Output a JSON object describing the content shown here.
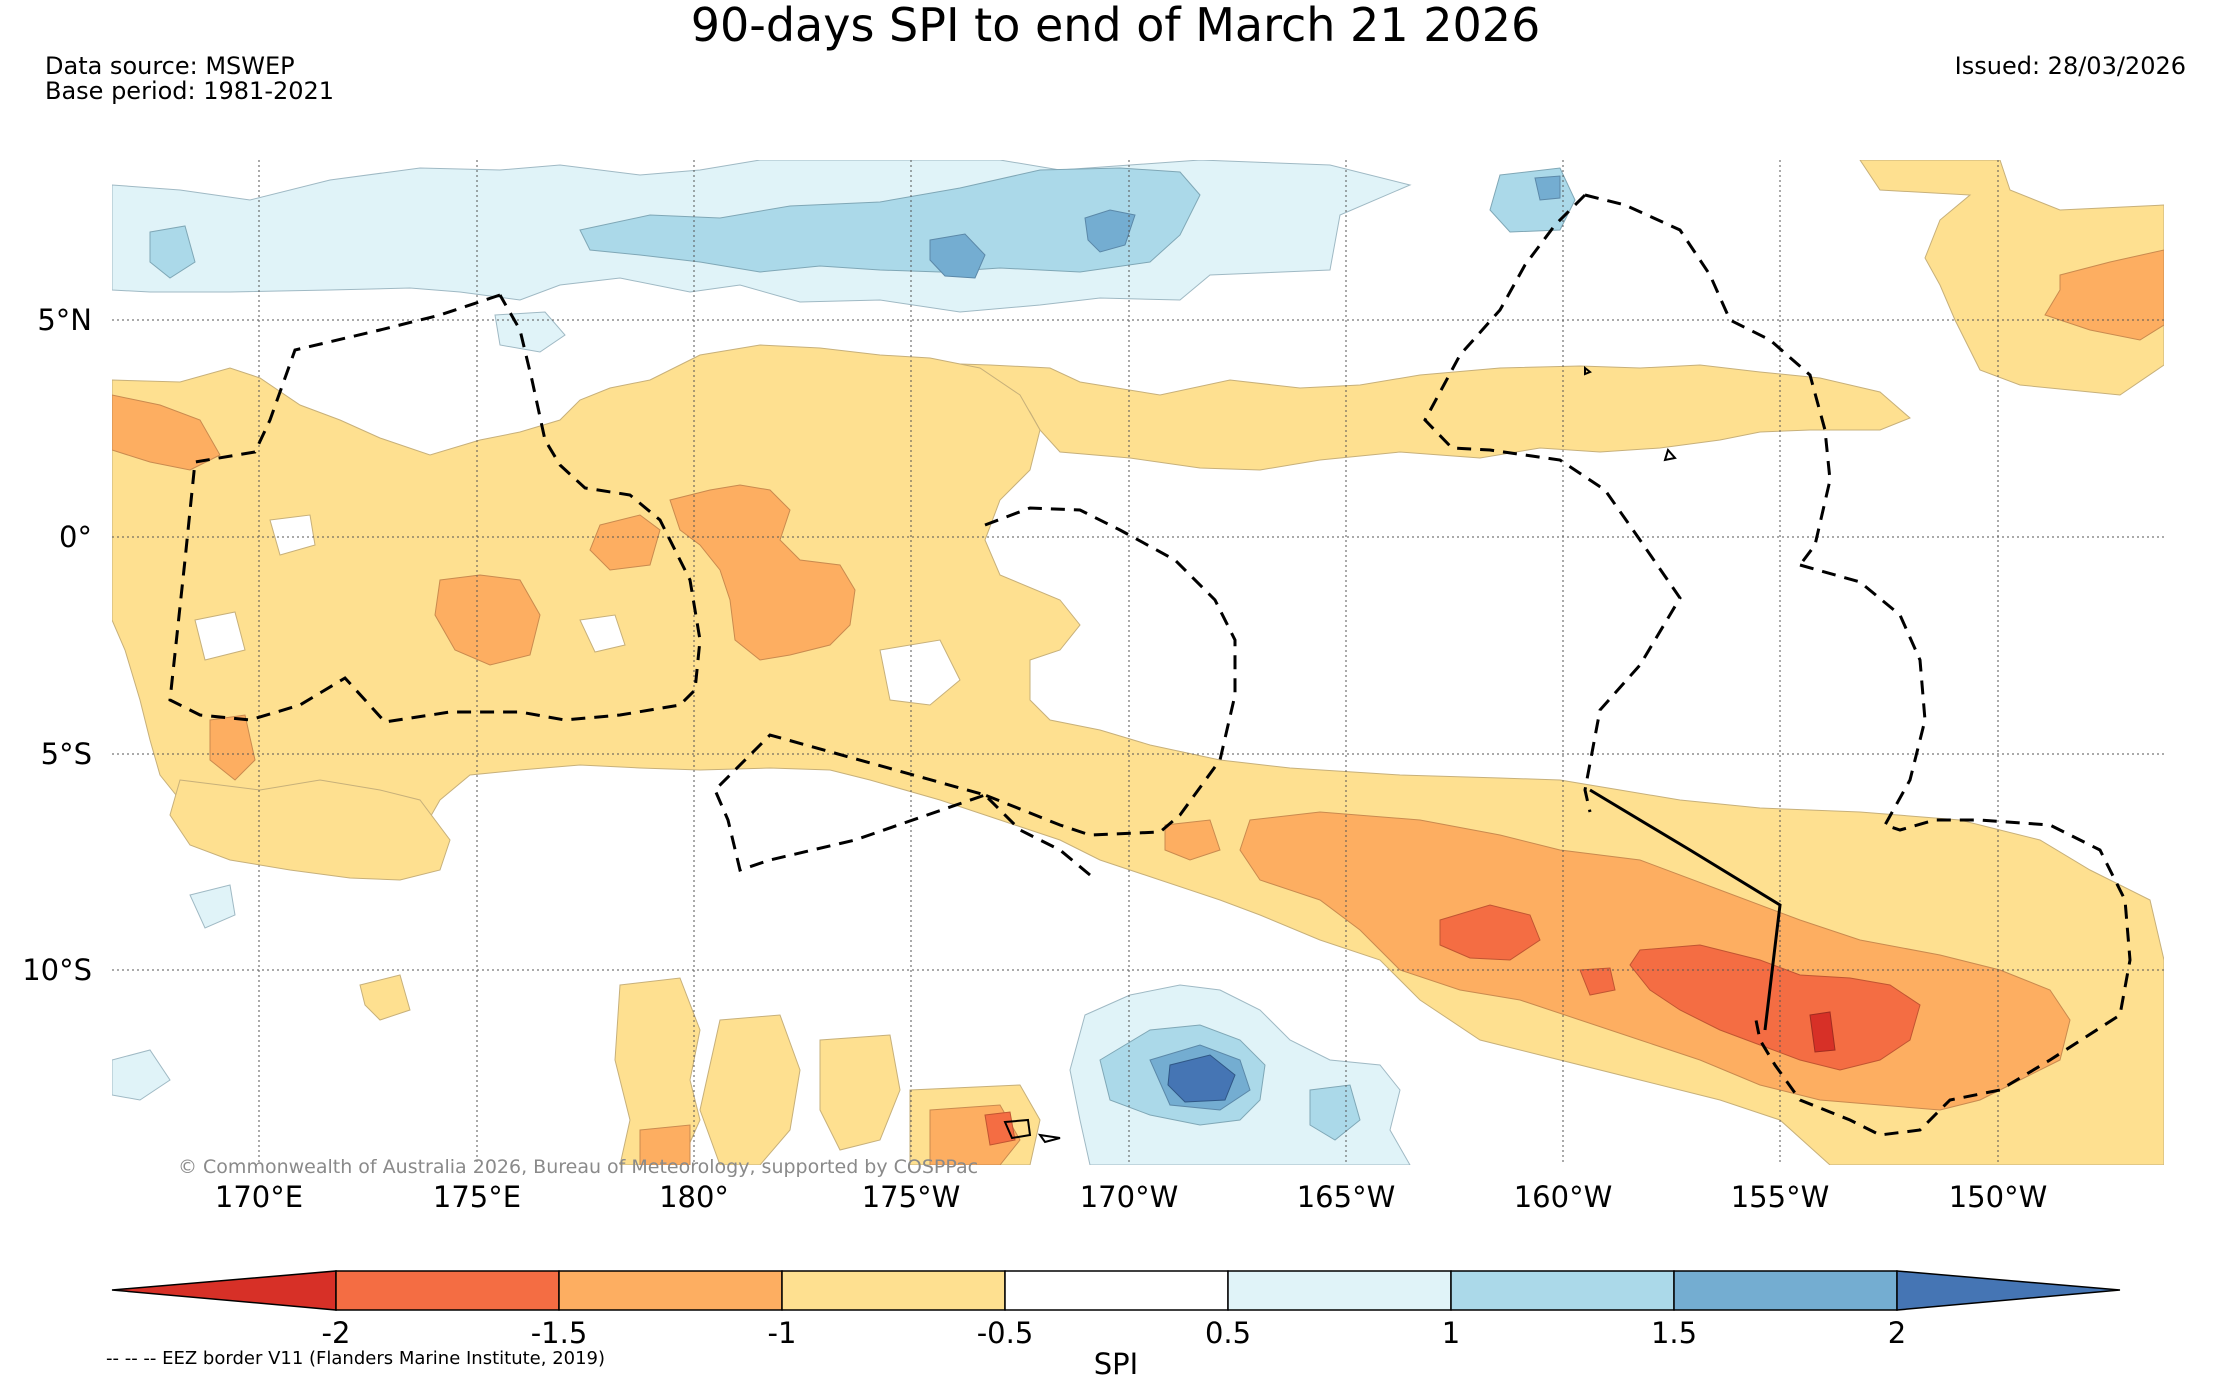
{
  "title": "90-days SPI to end of March 21 2026",
  "data_source": "Data source: MSWEP",
  "base_period": "Base period: 1981-2021",
  "issued": "Issued: 28/03/2026",
  "copyright": "© Commonwealth of Australia 2026, Bureau of Meteorology, supported by COSPPac",
  "lat_labels": [
    "5°N",
    "0°",
    "5°S",
    "10°S"
  ],
  "lon_labels": [
    "170°E",
    "175°E",
    "180°",
    "175°W",
    "170°W",
    "165°W",
    "160°W",
    "155°W",
    "150°W"
  ],
  "legend": {
    "title": "SPI",
    "ticks": [
      "-2",
      "-1.5",
      "-1",
      "-0.5",
      "0.5",
      "1",
      "1.5",
      "2"
    ],
    "colors": [
      "#d73027",
      "#f46d43",
      "#fdae61",
      "#fee090",
      "#ffffff",
      "#e0f3f8",
      "#abd9e9",
      "#74add1",
      "#4575b4"
    ],
    "eez_note": "-- -- -- EEZ border V11 (Flanders Marine Institute, 2019)"
  }
}
